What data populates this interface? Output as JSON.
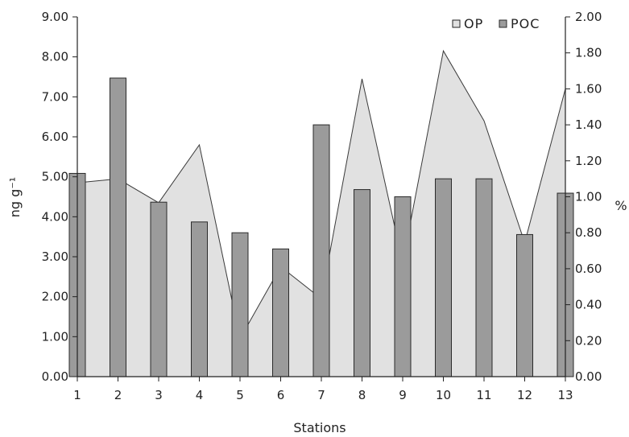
{
  "chart_data": {
    "type": "bar",
    "categories": [
      "1",
      "2",
      "3",
      "4",
      "5",
      "6",
      "7",
      "8",
      "9",
      "10",
      "11",
      "12",
      "13"
    ],
    "series": [
      {
        "name": "OP",
        "type": "area",
        "axis": "left",
        "values": [
          4.85,
          4.95,
          4.35,
          5.8,
          0.95,
          2.75,
          1.95,
          7.45,
          2.85,
          8.15,
          6.4,
          3.35,
          7.2
        ]
      },
      {
        "name": "POC",
        "type": "bar",
        "axis": "right",
        "values": [
          1.13,
          1.66,
          0.97,
          0.86,
          0.8,
          0.71,
          1.4,
          1.04,
          1.0,
          1.1,
          1.1,
          0.79,
          1.02
        ]
      }
    ],
    "xlabel": "Stations",
    "ylabel": "ng g⁻¹",
    "y2label": "%",
    "ylim": [
      0,
      9
    ],
    "y2lim": [
      0,
      2
    ],
    "yticks": [
      "0.00",
      "1.00",
      "2.00",
      "3.00",
      "4.00",
      "5.00",
      "6.00",
      "7.00",
      "8.00",
      "9.00"
    ],
    "y2ticks": [
      "0.00",
      "0.20",
      "0.40",
      "0.60",
      "0.80",
      "1.00",
      "1.20",
      "1.40",
      "1.60",
      "1.80",
      "2.00"
    ],
    "legend_position": "top-right",
    "grid": false,
    "colors": {
      "area_fill": "#e1e1e1",
      "area_line": "#3a3a3a",
      "bar_fill": "#9b9b9b",
      "bar_edge": "#2a2a2a",
      "axis": "#222222"
    }
  }
}
